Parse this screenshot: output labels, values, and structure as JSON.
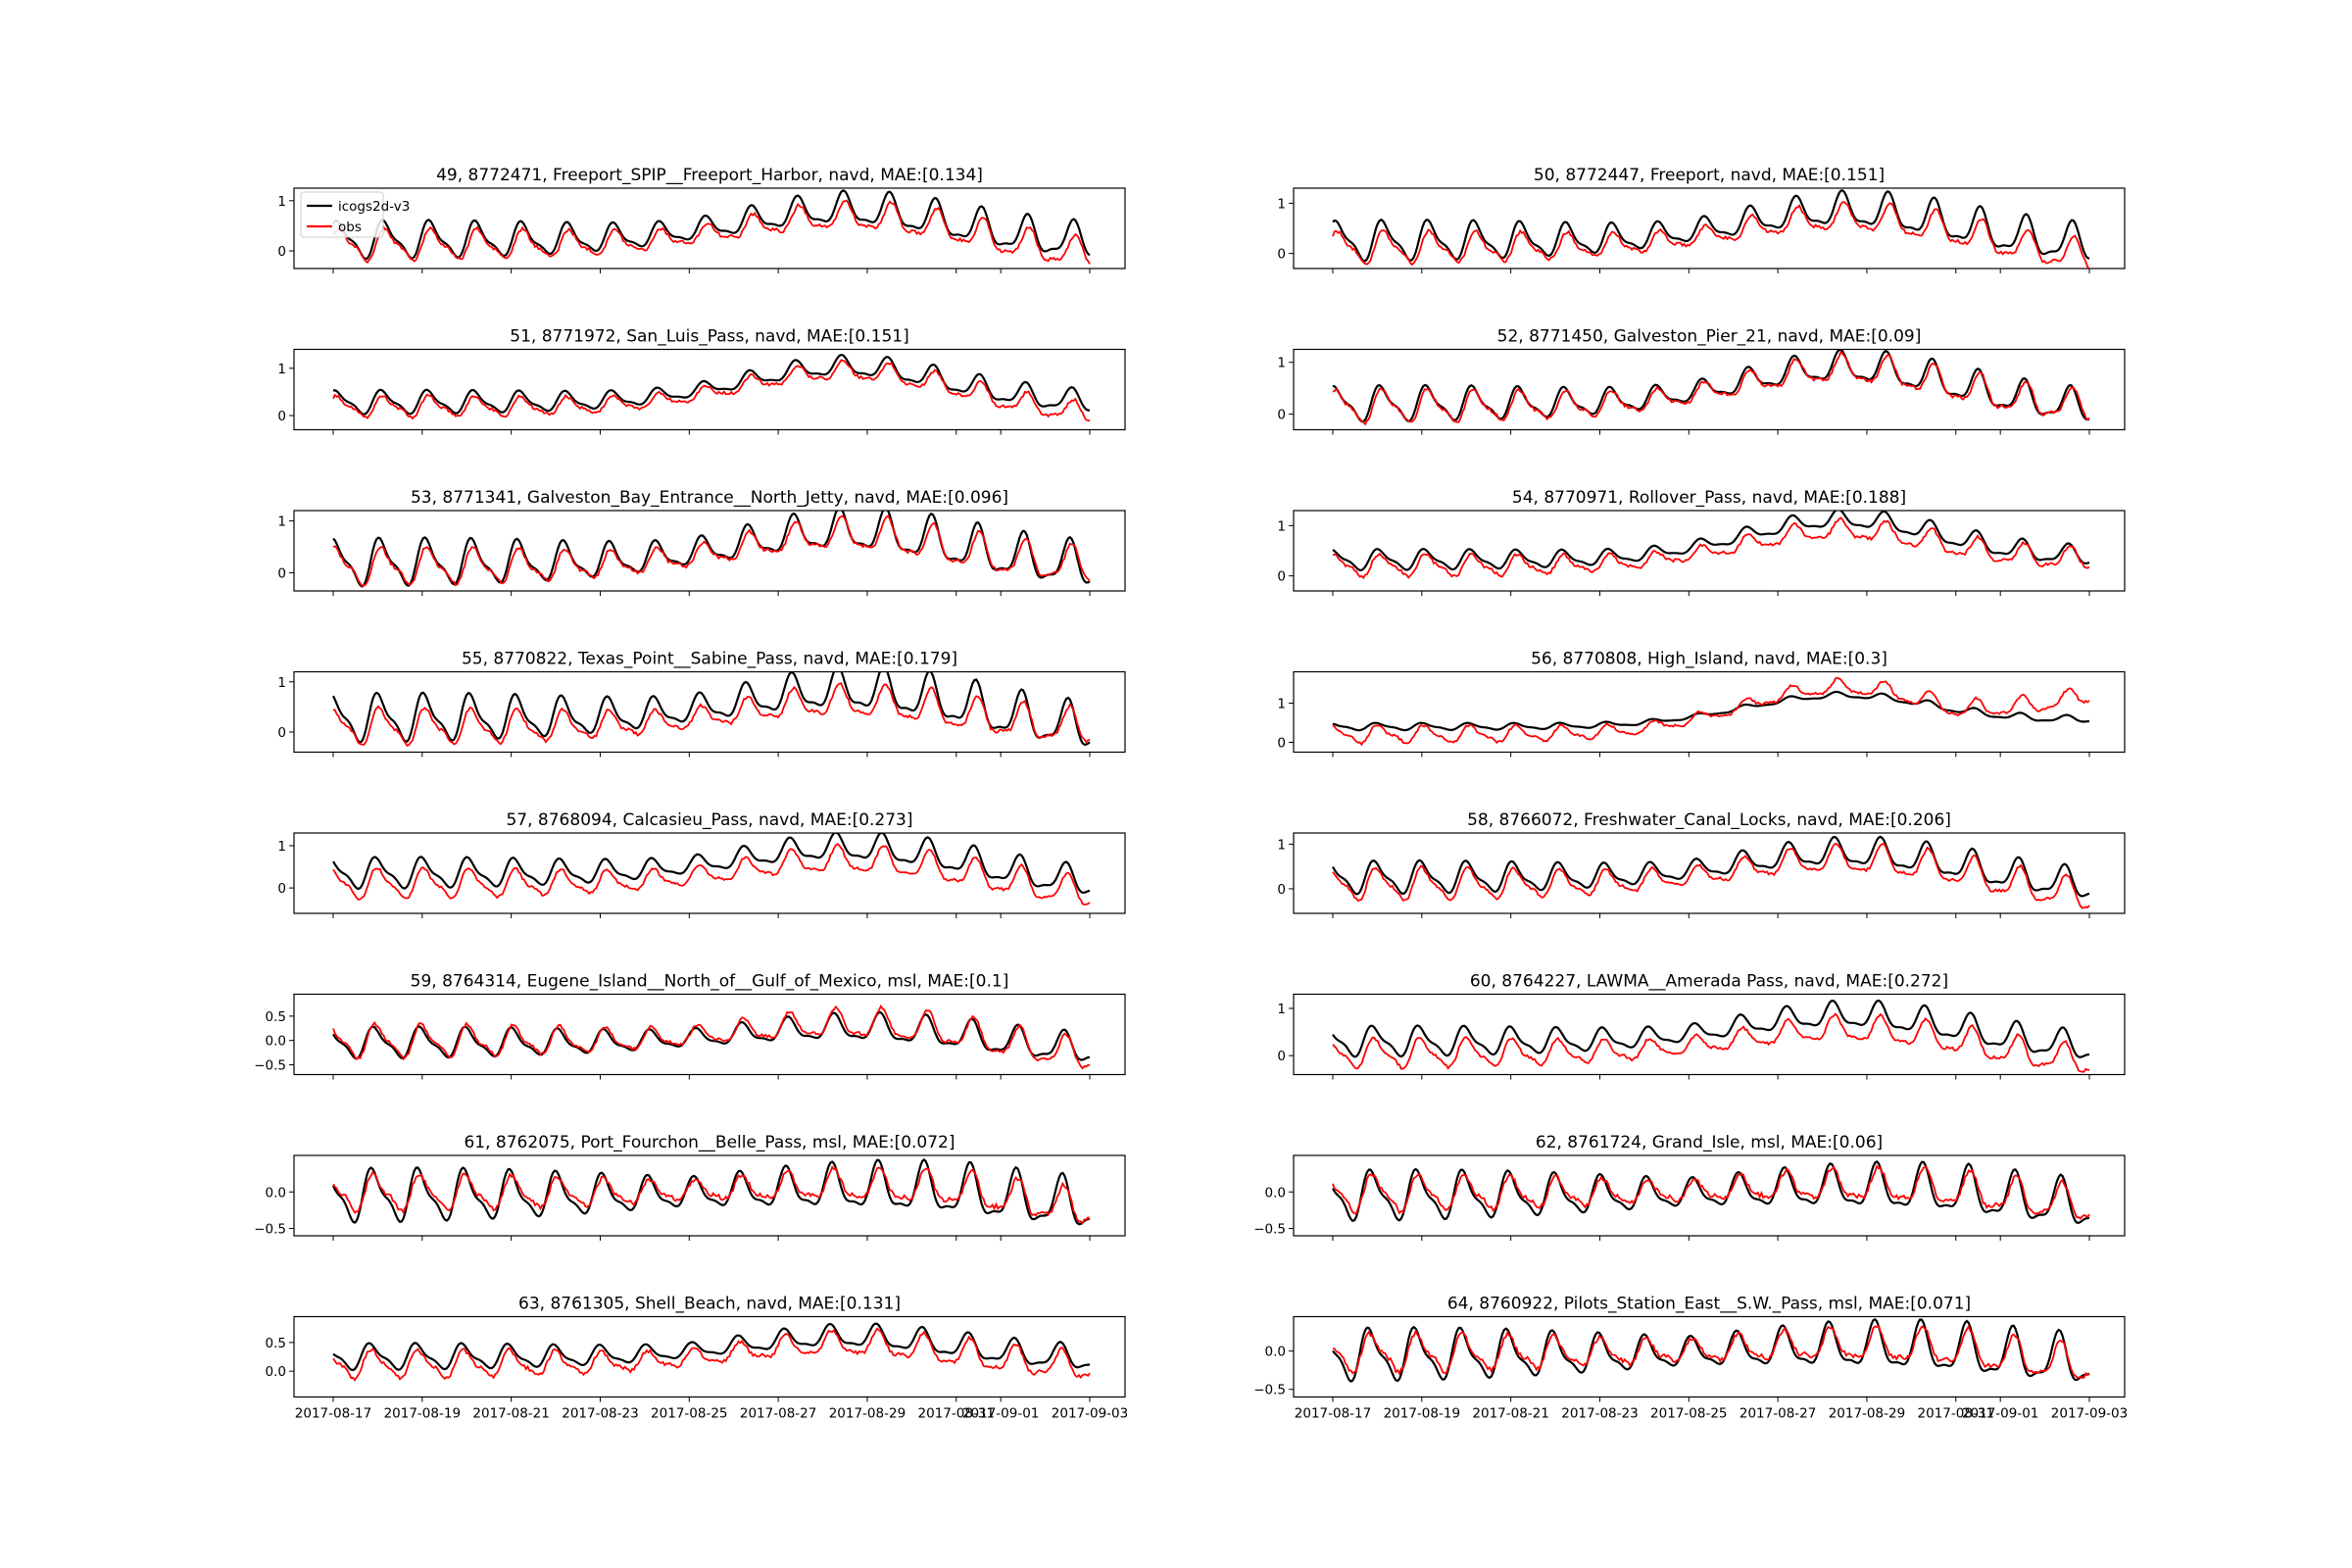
{
  "figure": {
    "x_axis_ticks": [
      "2017-08-17",
      "2017-08-19",
      "2017-08-21",
      "2017-08-23",
      "2017-08-25",
      "2017-08-27",
      "2017-08-29",
      "2017-08-31",
      "2017-09-01",
      "2017-09-03"
    ],
    "x_axis_tick_days": [
      0,
      2,
      4,
      6,
      8,
      10,
      12,
      14,
      15,
      17
    ],
    "x_range_days": [
      0,
      17
    ]
  },
  "legend": {
    "location": "upper-left of first panel",
    "items": [
      {
        "label": "icogs2d-v3",
        "color": "#000000"
      },
      {
        "label": "obs",
        "color": "#ff0000"
      }
    ]
  },
  "chart_data": [
    {
      "type": "line",
      "title": "49, 8772471, Freeport_SPIP__Freeport_Harbor, navd, MAE:[0.134]",
      "ylim": [
        -0.35,
        1.25
      ],
      "yticks": [
        {
          "value": 1,
          "label": "1"
        },
        {
          "value": 0,
          "label": "0"
        }
      ],
      "model": {
        "mean": 0.22,
        "amp": 0.33,
        "hump": 0.6,
        "end": 0.15
      },
      "obs": {
        "mean": 0.12,
        "amp": 0.28,
        "hump": 0.55,
        "end": -0.1
      },
      "x": [
        0,
        17
      ],
      "series": [
        {
          "name": "icogs2d-v3"
        },
        {
          "name": "obs"
        }
      ]
    },
    {
      "type": "line",
      "title": "50, 8772447, Freeport, navd, MAE:[0.151]",
      "ylim": [
        -0.3,
        1.3
      ],
      "yticks": [
        {
          "value": 1,
          "label": "1"
        },
        {
          "value": 0,
          "label": "0"
        }
      ],
      "model": {
        "mean": 0.25,
        "amp": 0.35,
        "hump": 0.6,
        "end": 0.15
      },
      "obs": {
        "mean": 0.12,
        "amp": 0.28,
        "hump": 0.58,
        "end": -0.1
      },
      "x": [
        0,
        17
      ],
      "series": [
        {
          "name": "icogs2d-v3"
        },
        {
          "name": "obs"
        }
      ]
    },
    {
      "type": "line",
      "title": "51, 8771972, San_Luis_Pass, navd, MAE:[0.151]",
      "ylim": [
        -0.3,
        1.4
      ],
      "yticks": [
        {
          "value": 1,
          "label": "1"
        },
        {
          "value": 0,
          "label": "0"
        }
      ],
      "model": {
        "mean": 0.28,
        "amp": 0.22,
        "hump": 0.75,
        "end": 0.25
      },
      "obs": {
        "mean": 0.18,
        "amp": 0.2,
        "hump": 0.75,
        "end": 0.0
      },
      "x": [
        0,
        17
      ],
      "series": [
        {
          "name": "icogs2d-v3"
        },
        {
          "name": "obs"
        }
      ]
    },
    {
      "type": "line",
      "title": "52, 8771450, Galveston_Pier_21, navd, MAE:[0.09]",
      "ylim": [
        -0.3,
        1.25
      ],
      "yticks": [
        {
          "value": 1,
          "label": "1"
        },
        {
          "value": 0,
          "label": "0"
        }
      ],
      "model": {
        "mean": 0.2,
        "amp": 0.3,
        "hump": 0.7,
        "end": 0.1
      },
      "obs": {
        "mean": 0.15,
        "amp": 0.28,
        "hump": 0.7,
        "end": 0.1
      },
      "x": [
        0,
        17
      ],
      "series": [
        {
          "name": "icogs2d-v3"
        },
        {
          "name": "obs"
        }
      ]
    },
    {
      "type": "line",
      "title": "53, 8771341, Galveston_Bay_Entrance__North_Jetty, navd, MAE:[0.096]",
      "ylim": [
        -0.35,
        1.2
      ],
      "yticks": [
        {
          "value": 1,
          "label": "1"
        },
        {
          "value": 0,
          "label": "0"
        }
      ],
      "model": {
        "mean": 0.2,
        "amp": 0.4,
        "hump": 0.6,
        "end": 0.1
      },
      "obs": {
        "mean": 0.12,
        "amp": 0.32,
        "hump": 0.6,
        "end": 0.1
      },
      "x": [
        0,
        17
      ],
      "series": [
        {
          "name": "icogs2d-v3"
        },
        {
          "name": "obs"
        }
      ]
    },
    {
      "type": "line",
      "title": "54, 8770971, Rollover_Pass, navd, MAE:[0.188]",
      "ylim": [
        -0.3,
        1.3
      ],
      "yticks": [
        {
          "value": 1,
          "label": "1"
        },
        {
          "value": 0,
          "label": "0"
        }
      ],
      "model": {
        "mean": 0.32,
        "amp": 0.18,
        "hump": 0.8,
        "end": 0.35
      },
      "obs": {
        "mean": 0.2,
        "amp": 0.2,
        "hump": 0.7,
        "end": 0.3
      },
      "x": [
        0,
        17
      ],
      "series": [
        {
          "name": "icogs2d-v3"
        },
        {
          "name": "obs"
        }
      ]
    },
    {
      "type": "line",
      "title": "55, 8770822, Texas_Point__Sabine_Pass, navd, MAE:[0.179]",
      "ylim": [
        -0.4,
        1.2
      ],
      "yticks": [
        {
          "value": 1,
          "label": "1"
        },
        {
          "value": 0,
          "label": "0"
        }
      ],
      "model": {
        "mean": 0.28,
        "amp": 0.42,
        "hump": 0.55,
        "end": 0.05
      },
      "obs": {
        "mean": 0.1,
        "amp": 0.32,
        "hump": 0.5,
        "end": 0.05
      },
      "x": [
        0,
        17
      ],
      "series": [
        {
          "name": "icogs2d-v3"
        },
        {
          "name": "obs"
        }
      ]
    },
    {
      "type": "line",
      "title": "56, 8770808, High_Island, navd, MAE:[0.3]",
      "ylim": [
        -0.25,
        1.8
      ],
      "yticks": [
        {
          "value": 1,
          "label": "1"
        },
        {
          "value": 0,
          "label": "0"
        }
      ],
      "model": {
        "mean": 0.4,
        "amp": 0.08,
        "hump": 0.8,
        "end": 0.55
      },
      "obs": {
        "mean": 0.2,
        "amp": 0.2,
        "hump": 1.2,
        "end": 1.15
      },
      "x": [
        0,
        17
      ],
      "series": [
        {
          "name": "icogs2d-v3"
        },
        {
          "name": "obs"
        }
      ]
    },
    {
      "type": "line",
      "title": "57, 8768094, Calcasieu_Pass, navd, MAE:[0.273]",
      "ylim": [
        -0.6,
        1.3
      ],
      "yticks": [
        {
          "value": 1,
          "label": "1"
        },
        {
          "value": 0,
          "label": "0"
        }
      ],
      "model": {
        "mean": 0.35,
        "amp": 0.32,
        "hump": 0.6,
        "end": 0.1
      },
      "obs": {
        "mean": 0.1,
        "amp": 0.32,
        "hump": 0.55,
        "end": -0.15
      },
      "x": [
        0,
        17
      ],
      "series": [
        {
          "name": "icogs2d-v3"
        },
        {
          "name": "obs"
        }
      ]
    },
    {
      "type": "line",
      "title": "58, 8766072, Freshwater_Canal_Locks, navd, MAE:[0.206]",
      "ylim": [
        -0.55,
        1.25
      ],
      "yticks": [
        {
          "value": 1,
          "label": "1"
        },
        {
          "value": 0,
          "label": "0"
        }
      ],
      "model": {
        "mean": 0.25,
        "amp": 0.32,
        "hump": 0.55,
        "end": 0.05
      },
      "obs": {
        "mean": 0.1,
        "amp": 0.32,
        "hump": 0.55,
        "end": -0.2
      },
      "x": [
        0,
        17
      ],
      "series": [
        {
          "name": "icogs2d-v3"
        },
        {
          "name": "obs"
        }
      ]
    },
    {
      "type": "line",
      "title": "59, 8764314, Eugene_Island__North_of__Gulf_of_Mexico, msl, MAE:[0.1]",
      "ylim": [
        -0.7,
        0.95
      ],
      "yticks": [
        {
          "value": 0.5,
          "label": "0.5"
        },
        {
          "value": 0,
          "label": "0.0"
        },
        {
          "value": -0.5,
          "label": "−0.5"
        }
      ],
      "model": {
        "mean": -0.05,
        "amp": 0.28,
        "hump": 0.3,
        "end": -0.2
      },
      "obs": {
        "mean": -0.02,
        "amp": 0.3,
        "hump": 0.35,
        "end": -0.35
      },
      "x": [
        0,
        17
      ],
      "series": [
        {
          "name": "icogs2d-v3"
        },
        {
          "name": "obs"
        }
      ]
    },
    {
      "type": "line",
      "title": "60, 8764227, LAWMA__Amerada Pass, navd, MAE:[0.272]",
      "ylim": [
        -0.4,
        1.3
      ],
      "yticks": [
        {
          "value": 1,
          "label": "1"
        },
        {
          "value": 0,
          "label": "0"
        }
      ],
      "model": {
        "mean": 0.3,
        "amp": 0.28,
        "hump": 0.55,
        "end": 0.15
      },
      "obs": {
        "mean": 0.05,
        "amp": 0.28,
        "hump": 0.5,
        "end": -0.15
      },
      "x": [
        0,
        17
      ],
      "series": [
        {
          "name": "icogs2d-v3"
        },
        {
          "name": "obs"
        }
      ]
    },
    {
      "type": "line",
      "title": "61, 8762075, Port_Fourchon__Belle_Pass, msl, MAE:[0.072]",
      "ylim": [
        -0.6,
        0.5
      ],
      "yticks": [
        {
          "value": 0,
          "label": "0.0"
        },
        {
          "value": -0.5,
          "label": "−0.5"
        }
      ],
      "model": {
        "mean": -0.05,
        "amp": 0.32,
        "hump": 0.1,
        "end": -0.2
      },
      "obs": {
        "mean": -0.02,
        "amp": 0.22,
        "hump": 0.1,
        "end": -0.25
      },
      "x": [
        0,
        17
      ],
      "series": [
        {
          "name": "icogs2d-v3"
        },
        {
          "name": "obs"
        }
      ]
    },
    {
      "type": "line",
      "title": "62, 8761724, Grand_Isle, msl, MAE:[0.06]",
      "ylim": [
        -0.6,
        0.5
      ],
      "yticks": [
        {
          "value": 0,
          "label": "0.0"
        },
        {
          "value": -0.5,
          "label": "−0.5"
        }
      ],
      "model": {
        "mean": -0.05,
        "amp": 0.3,
        "hump": 0.1,
        "end": -0.2
      },
      "obs": {
        "mean": -0.02,
        "amp": 0.22,
        "hump": 0.1,
        "end": -0.2
      },
      "x": [
        0,
        17
      ],
      "series": [
        {
          "name": "icogs2d-v3"
        },
        {
          "name": "obs"
        }
      ]
    },
    {
      "type": "line",
      "title": "63, 8761305, Shell_Beach, navd, MAE:[0.131]",
      "ylim": [
        -0.45,
        0.95
      ],
      "yticks": [
        {
          "value": 0.5,
          "label": "0.5"
        },
        {
          "value": 0,
          "label": "0.0"
        }
      ],
      "model": {
        "mean": 0.25,
        "amp": 0.2,
        "hump": 0.35,
        "end": 0.2
      },
      "obs": {
        "mean": 0.12,
        "amp": 0.22,
        "hump": 0.35,
        "end": 0.05
      },
      "x": [
        0,
        17
      ],
      "series": [
        {
          "name": "icogs2d-v3"
        },
        {
          "name": "obs"
        }
      ]
    },
    {
      "type": "line",
      "title": "64, 8760922, Pilots_Station_East__S.W._Pass, msl, MAE:[0.071]",
      "ylim": [
        -0.6,
        0.45
      ],
      "yticks": [
        {
          "value": 0,
          "label": "0.0"
        },
        {
          "value": -0.5,
          "label": "−0.5"
        }
      ],
      "model": {
        "mean": -0.05,
        "amp": 0.3,
        "hump": 0.1,
        "end": -0.15
      },
      "obs": {
        "mean": -0.03,
        "amp": 0.22,
        "hump": 0.1,
        "end": -0.2
      },
      "x": [
        0,
        17
      ],
      "series": [
        {
          "name": "icogs2d-v3"
        },
        {
          "name": "obs"
        }
      ]
    }
  ]
}
